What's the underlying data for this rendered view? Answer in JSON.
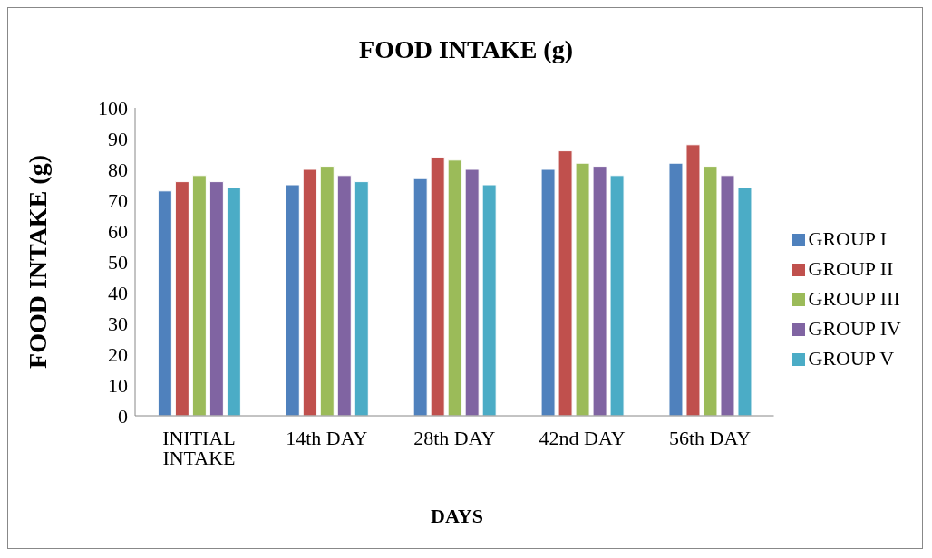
{
  "chart_data": {
    "type": "bar",
    "title": "FOOD INTAKE (g)",
    "xlabel": "DAYS",
    "ylabel": "FOOD INTAKE (g)",
    "categories": [
      "INITIAL INTAKE",
      "14th DAY",
      "28th DAY",
      "42nd DAY",
      "56th DAY"
    ],
    "series": [
      {
        "name": "GROUP I",
        "color": "#4f81bd",
        "values": [
          73,
          75,
          77,
          80,
          82
        ]
      },
      {
        "name": "GROUP II",
        "color": "#c0504d",
        "values": [
          76,
          80,
          84,
          86,
          88
        ]
      },
      {
        "name": "GROUP III",
        "color": "#9bbb59",
        "values": [
          78,
          81,
          83,
          82,
          81
        ]
      },
      {
        "name": "GROUP IV",
        "color": "#8064a2",
        "values": [
          76,
          78,
          80,
          81,
          78
        ]
      },
      {
        "name": "GROUP V",
        "color": "#4bacc6",
        "values": [
          74,
          76,
          75,
          78,
          74
        ]
      }
    ],
    "ylim": [
      0,
      100
    ],
    "yticks": [
      0,
      10,
      20,
      30,
      40,
      50,
      60,
      70,
      80,
      90,
      100
    ],
    "grid": false,
    "legend": "right"
  }
}
